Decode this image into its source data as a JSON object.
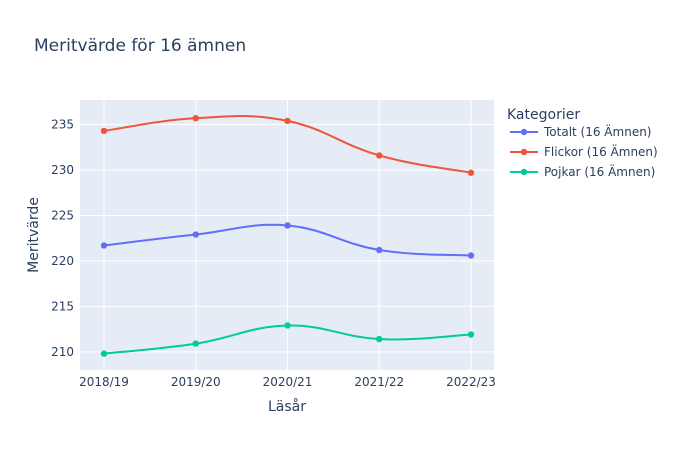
{
  "chart_data": {
    "type": "line",
    "title": "Meritvärde för 16 ämnen",
    "xlabel": "Läsår",
    "ylabel": "Meritvärde",
    "categories": [
      "2018/19",
      "2019/20",
      "2020/21",
      "2021/22",
      "2022/23"
    ],
    "ylim": [
      208,
      237.7
    ],
    "yticks": [
      210,
      215,
      220,
      225,
      230,
      235
    ],
    "grid": true,
    "legend": {
      "title": "Kategorier",
      "placement": "right"
    },
    "series": [
      {
        "name": "Totalt (16 Ämnen)",
        "color": "#636efa",
        "values": [
          221.7,
          222.9,
          223.9,
          221.2,
          220.6
        ]
      },
      {
        "name": "Flickor (16 Ämnen)",
        "color": "#ef553b",
        "values": [
          234.3,
          235.7,
          235.4,
          231.6,
          229.7
        ]
      },
      {
        "name": "Pojkar (16 Ämnen)",
        "color": "#00cc96",
        "values": [
          209.8,
          210.9,
          212.9,
          211.4,
          211.9
        ]
      }
    ]
  }
}
